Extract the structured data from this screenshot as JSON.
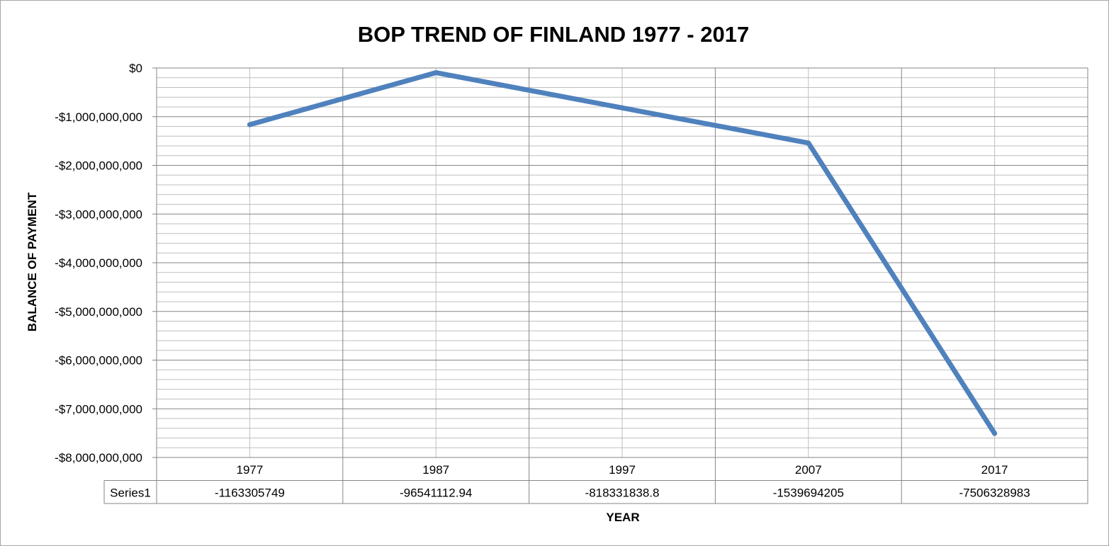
{
  "chart_data": {
    "type": "line",
    "title": "BOP TREND OF FINLAND 1977 - 2017",
    "xlabel": "YEAR",
    "ylabel": "BALANCE OF PAYMENT",
    "categories": [
      "1977",
      "1987",
      "1997",
      "2007",
      "2017"
    ],
    "series": [
      {
        "name": "Series1",
        "values": [
          -1163305749,
          -96541112.94,
          -818331838.8,
          -1539694205,
          -7506328983
        ],
        "value_labels": [
          "-1163305749",
          "-96541112.94",
          "-818331838.8",
          "-1539694205",
          "-7506328983"
        ],
        "color": "#4f81bd"
      }
    ],
    "ylim": [
      -8000000000,
      0
    ],
    "ymajor": 1000000000,
    "yminor": 200000000,
    "ytick_labels": [
      "$0",
      "-$1,000,000,000",
      "-$2,000,000,000",
      "-$3,000,000,000",
      "-$4,000,000,000",
      "-$5,000,000,000",
      "-$6,000,000,000",
      "-$7,000,000,000",
      "-$8,000,000,000"
    ],
    "grid": true,
    "legend": "data-table",
    "data_table": true,
    "colors": {
      "line": "#4f81bd",
      "major_grid": "#868686",
      "minor_grid": "#bfbfbf",
      "frame": "#a6a6a6"
    }
  }
}
